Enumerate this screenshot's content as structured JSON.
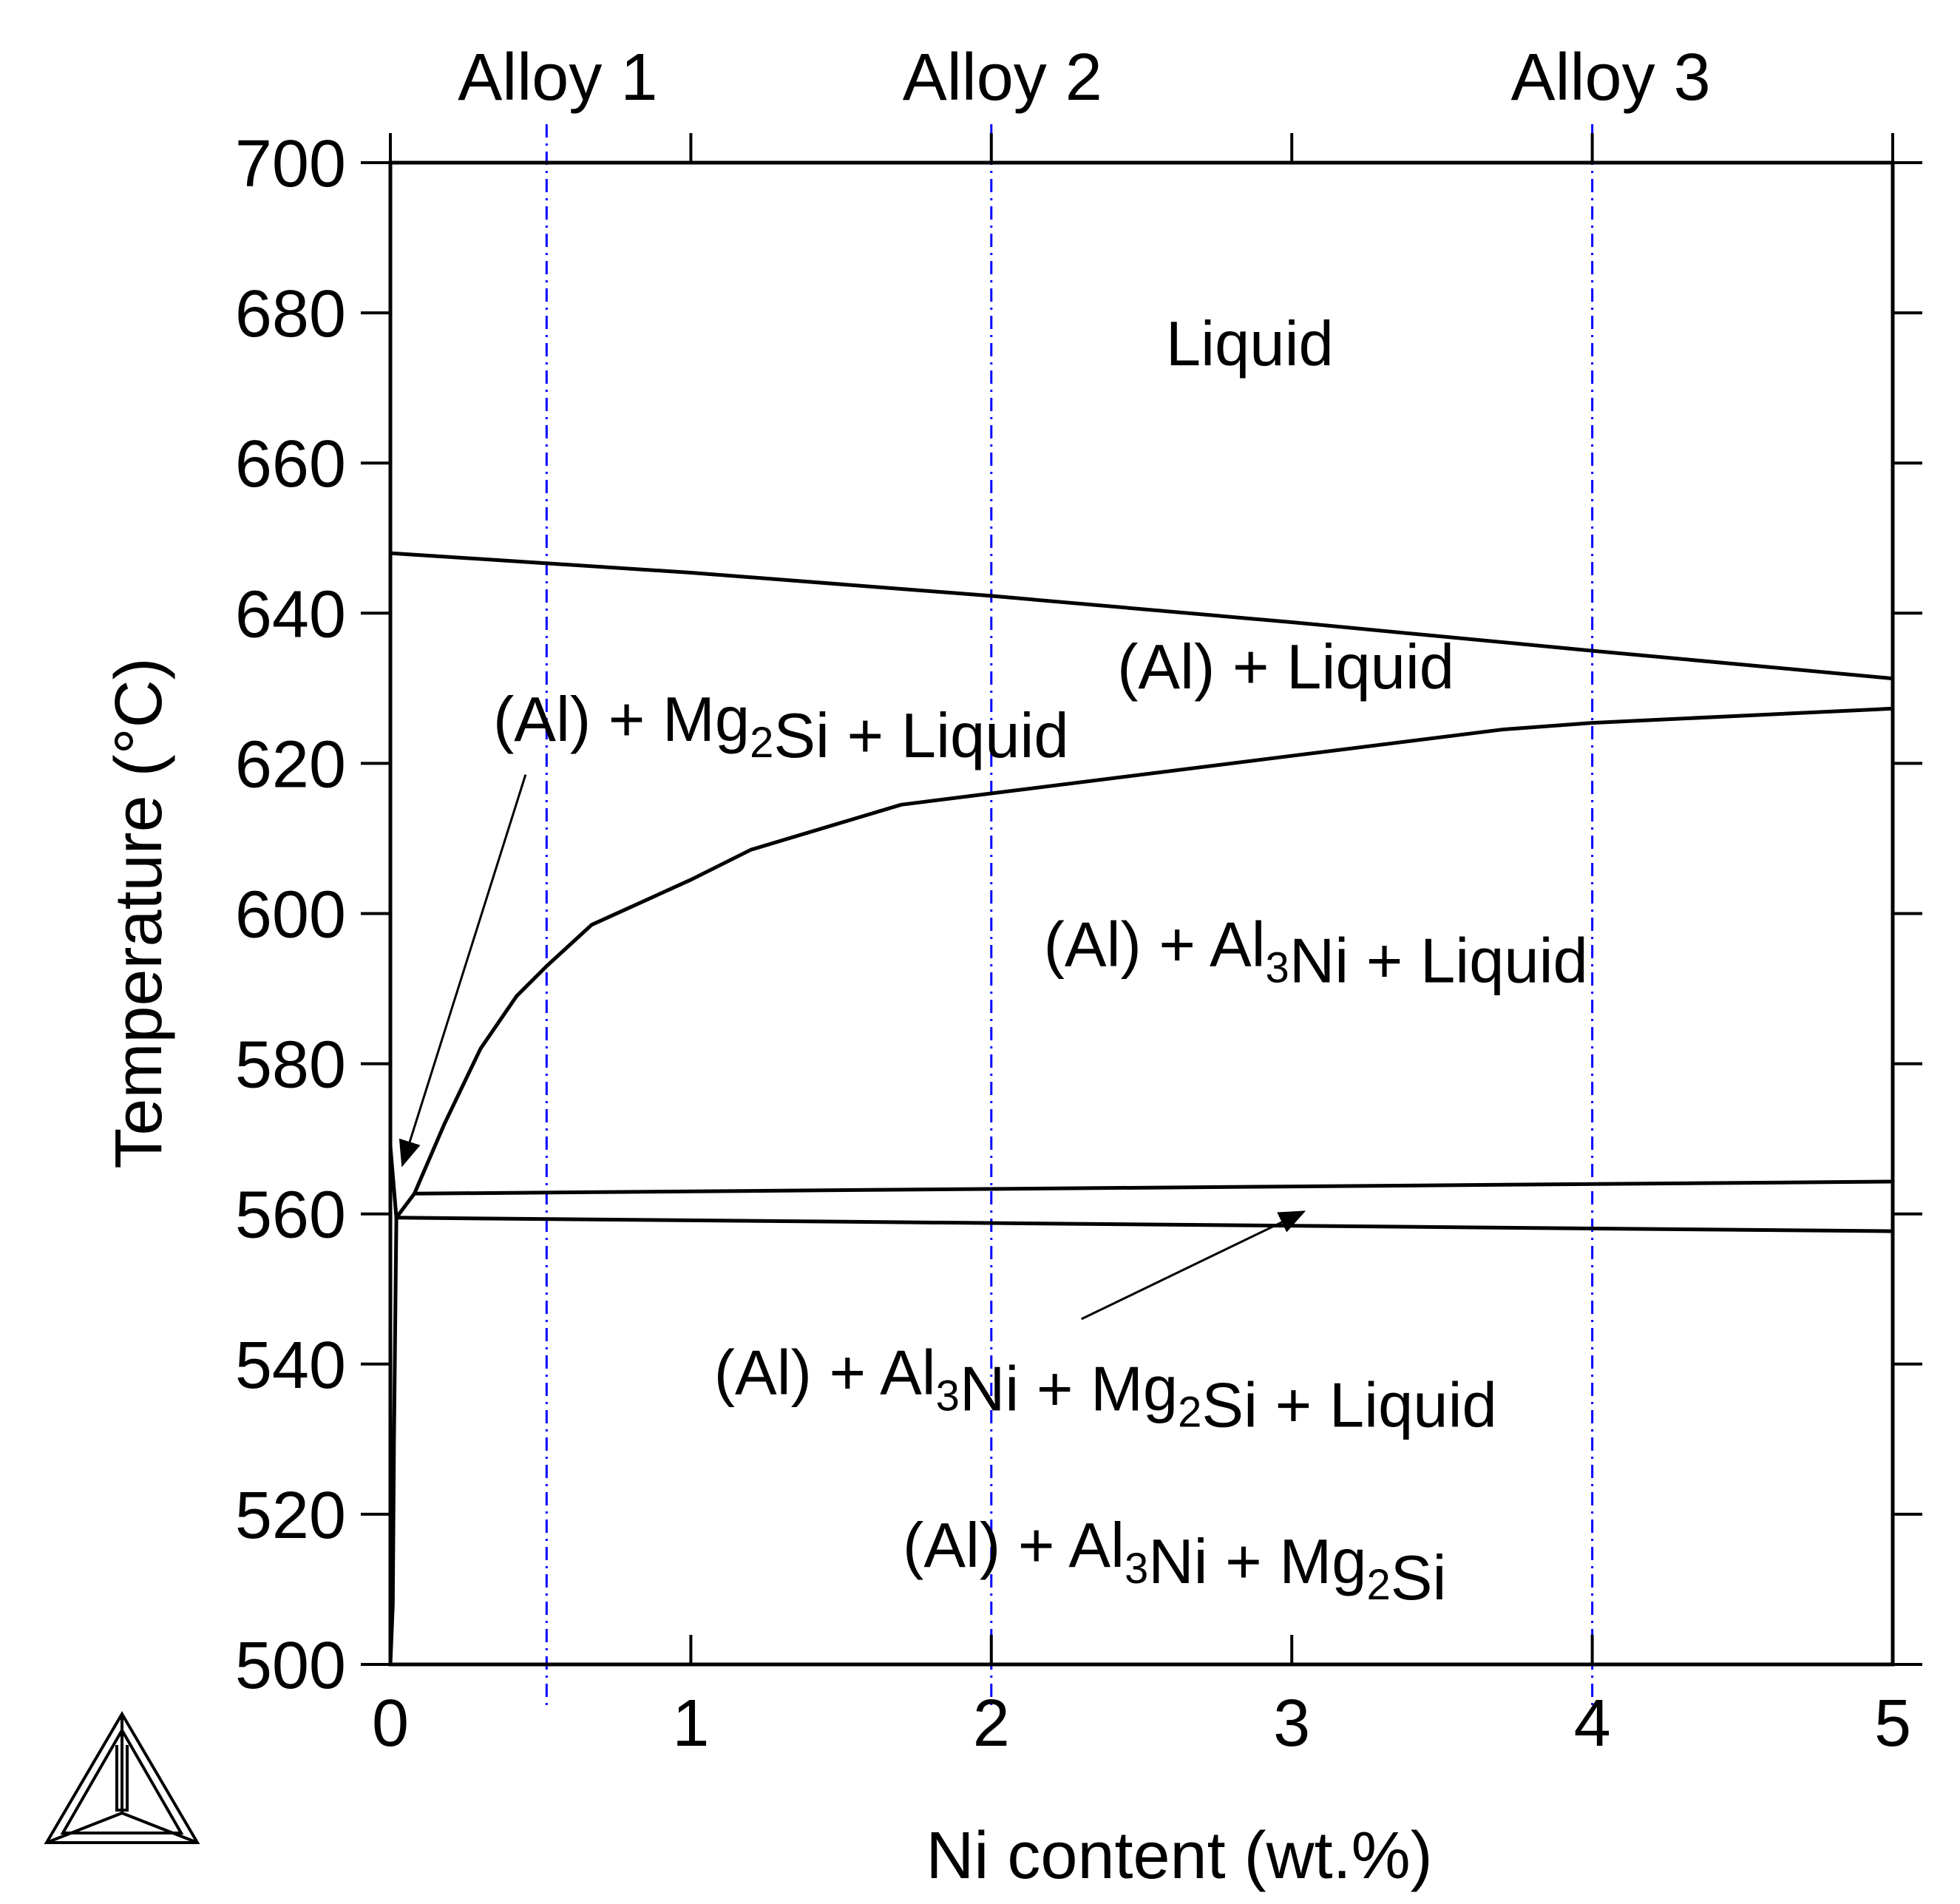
{
  "chart_data": {
    "type": "line",
    "xlabel": "Ni content (wt.%)",
    "ylabel": "Temperature (°C)",
    "xlim": [
      0,
      5
    ],
    "ylim": [
      500,
      700
    ],
    "x_ticks": [
      "0",
      "1",
      "2",
      "3",
      "4",
      "5"
    ],
    "y_ticks": [
      "500",
      "520",
      "540",
      "560",
      "580",
      "600",
      "620",
      "640",
      "660",
      "680",
      "700"
    ],
    "grid": false,
    "alloys": [
      {
        "name": "Alloy 1",
        "x": 0.52
      },
      {
        "name": "Alloy 2",
        "x": 2.0
      },
      {
        "name": "Alloy 3",
        "x": 4.0
      }
    ],
    "boundaries": [
      {
        "id": "liquidus",
        "points": [
          [
            0,
            648
          ],
          [
            1,
            645.4
          ],
          [
            2,
            642.3
          ],
          [
            3,
            638.8
          ],
          [
            4,
            635
          ],
          [
            5,
            631.3
          ]
        ]
      },
      {
        "id": "al3ni-liquidus",
        "points": [
          [
            0.08,
            562.7
          ],
          [
            0.18,
            572
          ],
          [
            0.3,
            582
          ],
          [
            0.42,
            589
          ],
          [
            0.52,
            593
          ],
          [
            0.67,
            598.5
          ],
          [
            1.0,
            604.5
          ],
          [
            1.2,
            608.5
          ],
          [
            1.7,
            614.5
          ],
          [
            2.0,
            616
          ],
          [
            3.0,
            621
          ],
          [
            3.7,
            624.5
          ],
          [
            4.0,
            625.4
          ],
          [
            5.0,
            627.3
          ]
        ]
      },
      {
        "id": "upper-eutectic",
        "points": [
          [
            0.08,
            562.7
          ],
          [
            5.0,
            564.3
          ]
        ]
      },
      {
        "id": "lower-eutectic",
        "points": [
          [
            0.02,
            559.5
          ],
          [
            5.0,
            557.7
          ]
        ]
      },
      {
        "id": "mg2si-wedge-left",
        "points": [
          [
            0,
            569
          ],
          [
            0.02,
            559.5
          ],
          [
            0.08,
            562.7
          ]
        ]
      },
      {
        "id": "solvus",
        "points": [
          [
            0.02,
            559.5
          ],
          [
            0.012,
            530
          ],
          [
            0.008,
            508
          ],
          [
            0,
            500
          ]
        ]
      },
      {
        "id": "y-axis-edge",
        "points": [
          [
            0,
            500
          ],
          [
            0,
            569
          ]
        ]
      }
    ],
    "regions": [
      {
        "label": "Liquid",
        "x": 2.86,
        "y": 673
      },
      {
        "label": "(Al) + Liquid",
        "x": 2.98,
        "y": 630
      },
      {
        "label": "(Al) + Mg₂Si + Liquid",
        "x": 1.3,
        "y": 623
      },
      {
        "label": "(Al) + Al₃Ni + Liquid",
        "x": 3.08,
        "y": 593
      },
      {
        "label": "(Al) + Al₃Ni + Mg₂Si + Liquid",
        "x": 2.38,
        "y": 536
      },
      {
        "label": "(Al) + Al₃Ni + Mg₂Si",
        "x": 2.61,
        "y": 513
      }
    ],
    "arrows": [
      {
        "from": [
          0.45,
          618.5
        ],
        "to": [
          0.04,
          566.5
        ]
      },
      {
        "from": [
          2.3,
          546
        ],
        "to": [
          3.04,
          560.3
        ]
      }
    ]
  }
}
